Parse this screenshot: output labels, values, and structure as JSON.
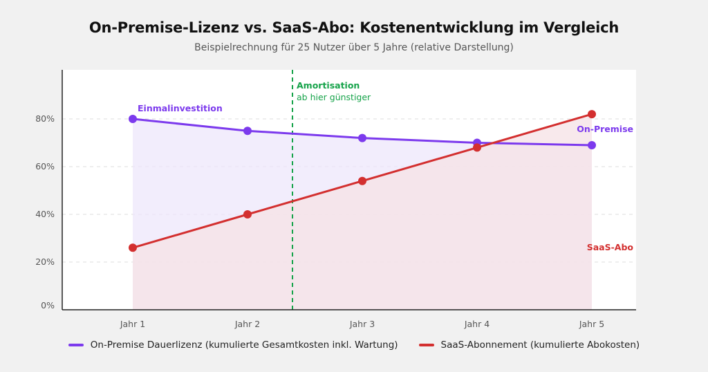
{
  "title": "On-Premise-Lizenz vs. SaaS-Abo: Kostenentwicklung im Vergleich",
  "subtitle": "Beispielrechnung für 25 Nutzer über 5 Jahre (relative Darstellung)",
  "chart_data": {
    "type": "line",
    "title": "On-Premise-Lizenz vs. SaaS-Abo: Kostenentwicklung im Vergleich",
    "subtitle": "Beispielrechnung für 25 Nutzer über 5 Jahre (relative Darstellung)",
    "categories": [
      "Jahr 1",
      "Jahr 2",
      "Jahr 3",
      "Jahr 4",
      "Jahr 5"
    ],
    "ylim": [
      0,
      100
    ],
    "yticks": [
      0,
      20,
      40,
      60,
      80
    ],
    "ytick_labels": [
      "0%",
      "20%",
      "40%",
      "60%",
      "80%"
    ],
    "grid": true,
    "legend_position": "bottom",
    "series": [
      {
        "name": "On-Premise Dauerlizenz (kumulierte Gesamtkosten inkl. Wartung)",
        "values": [
          80,
          75,
          72,
          70,
          69
        ],
        "color": "#7c3aed",
        "fill": "#ede7fb",
        "label_start": "Einmalinvestition",
        "label_end": "On-Premise"
      },
      {
        "name": "SaaS-Abonnement (kumulierte Abokosten)",
        "values": [
          26,
          40,
          54,
          68,
          82
        ],
        "color": "#d32f2f",
        "fill": "#f5e1e6",
        "label_end": "SaaS-Abo"
      }
    ],
    "annotations": {
      "breakeven_x": 2.38,
      "breakeven_title": "Amortisation",
      "breakeven_text": "ab hier günstiger",
      "breakeven_color": "#16a34a"
    }
  }
}
